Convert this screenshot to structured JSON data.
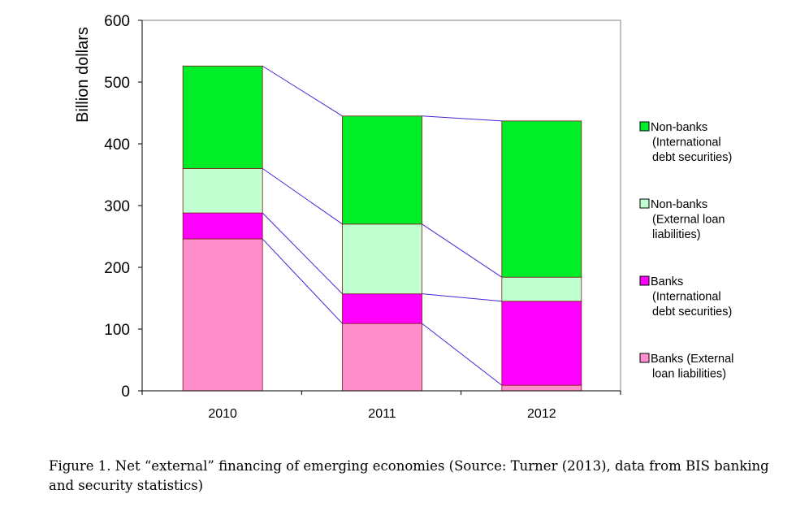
{
  "chart_data": {
    "type": "bar",
    "stacked": true,
    "categories": [
      "2010",
      "2011",
      "2012"
    ],
    "series": [
      {
        "name": "Banks (External loan liabilities)",
        "name_lines": [
          "Banks (External",
          "loan liabilities)"
        ],
        "color": "#ff8fcc",
        "values": [
          246,
          109,
          9
        ]
      },
      {
        "name": "Banks (International debt securities)",
        "name_lines": [
          "Banks",
          "(International",
          "debt securities)"
        ],
        "color": "#ff00ff",
        "values": [
          42,
          48,
          136
        ]
      },
      {
        "name": "Non-banks (External loan liabilities)",
        "name_lines": [
          "Non-banks",
          "(External loan",
          "liabilities)"
        ],
        "color": "#bfffd0",
        "values": [
          72,
          113,
          39
        ]
      },
      {
        "name": "Non-banks (International debt securities)",
        "name_lines": [
          "Non-banks",
          "(International",
          "debt securities)"
        ],
        "color": "#00ee28",
        "values": [
          166,
          175,
          253
        ]
      }
    ],
    "ylabel": "Billion dollars",
    "xlabel": "",
    "ylim": [
      0,
      600
    ],
    "yticks": [
      0,
      100,
      200,
      300,
      400,
      500,
      600
    ],
    "grid": false,
    "legend_position": "right",
    "series_lines_color": "#4b1fd6"
  },
  "caption": "Figure 1. Net “external” financing of emerging economies (Source: Turner (2013), data from BIS banking and security statistics)"
}
